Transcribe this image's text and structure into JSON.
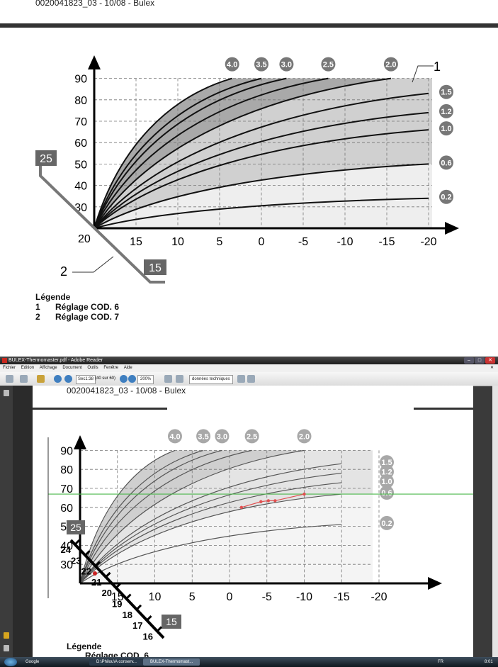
{
  "doc": {
    "header": "0020041823_03 - 10/08 - Bulex",
    "legend_title": "Légende",
    "legend_items": [
      {
        "num": "1",
        "label": "Réglage COD. 6"
      },
      {
        "num": "2",
        "label": "Réglage COD. 7"
      }
    ],
    "legend_partial": "Réglage COD. 6"
  },
  "window": {
    "title": "BULEX-Thermomaster.pdf - Adobe Reader",
    "menu": [
      "Fichier",
      "Edition",
      "Affichage",
      "Document",
      "Outils",
      "Fenêtre",
      "Aide"
    ],
    "toolbar": {
      "page_field": "Sec1:38",
      "page_of": "(40 sur 60)",
      "zoom": "200%",
      "search_dropdown": "données techniques"
    },
    "taskbar": {
      "start": "Google",
      "tasks": [
        "D:\\Philou\\A conserv...",
        "BULEX-Thermomast..."
      ],
      "lang": "FR",
      "clock": "8:01"
    }
  },
  "chart_data": [
    {
      "type": "line",
      "title": "",
      "xlabel": "",
      "ylabel": "",
      "x_ticks": [
        "15",
        "10",
        "5",
        "0",
        "-5",
        "-10",
        "-15",
        "-20"
      ],
      "y_ticks": [
        "90",
        "80",
        "70",
        "60",
        "50",
        "40",
        "30"
      ],
      "xlim": [
        20,
        -20
      ],
      "ylim": [
        20,
        90
      ],
      "origin_label": "20",
      "base_label": "20",
      "grid": true,
      "shift_scale": {
        "top": "25",
        "bottom": "15",
        "label": "2"
      },
      "callout_1": "1",
      "series": [
        {
          "name": "4.0",
          "end_x": 3.5,
          "end_y": 90
        },
        {
          "name": "3.5",
          "end_x": 0,
          "end_y": 90
        },
        {
          "name": "3.0",
          "end_x": -3,
          "end_y": 90
        },
        {
          "name": "2.5",
          "end_x": -8,
          "end_y": 90
        },
        {
          "name": "2.0",
          "end_x": -15.5,
          "end_y": 90
        },
        {
          "name": "1.5",
          "end_x": -20,
          "end_y": 83
        },
        {
          "name": "1.2",
          "end_x": -20,
          "end_y": 74
        },
        {
          "name": "1.0",
          "end_x": -20,
          "end_y": 66
        },
        {
          "name": "0.6",
          "end_x": -20,
          "end_y": 50
        },
        {
          "name": "0.2",
          "end_x": -20,
          "end_y": 34
        }
      ]
    },
    {
      "type": "line",
      "title": "",
      "x_ticks": [
        "15",
        "10",
        "5",
        "0",
        "-5",
        "-10",
        "-15",
        "-20"
      ],
      "y_ticks": [
        "90",
        "80",
        "70",
        "60",
        "50",
        "40",
        "30"
      ],
      "xlim": [
        20,
        -20
      ],
      "ylim": [
        20,
        90
      ],
      "shift_scale": {
        "top": "25",
        "bottom": "15",
        "steps": [
          "24",
          "23",
          "22",
          "21",
          "20",
          "19",
          "18",
          "17",
          "16"
        ]
      },
      "green_line_y": 67,
      "red_points": [
        {
          "x": -1.6,
          "y": 60
        },
        {
          "x": -4.2,
          "y": 63
        },
        {
          "x": -5.2,
          "y": 63.5
        },
        {
          "x": -6.1,
          "y": 63.5
        },
        {
          "x": -10,
          "y": 67
        }
      ],
      "series": [
        {
          "name": "4.0",
          "end_x": 7.3,
          "end_y": 90
        },
        {
          "name": "3.5",
          "end_x": 3.5,
          "end_y": 90
        },
        {
          "name": "3.0",
          "end_x": 1,
          "end_y": 90
        },
        {
          "name": "2.5",
          "end_x": -3,
          "end_y": 90
        },
        {
          "name": "2.0",
          "end_x": -10,
          "end_y": 90
        },
        {
          "name": "1.5",
          "end_x": -15,
          "end_y": 83
        },
        {
          "name": "1.2",
          "end_x": -15,
          "end_y": 78
        },
        {
          "name": "1.0",
          "end_x": -15,
          "end_y": 73
        },
        {
          "name": "0.6",
          "end_x": -15,
          "end_y": 67
        },
        {
          "name": "0.2",
          "end_x": -15,
          "end_y": 51
        }
      ]
    }
  ]
}
